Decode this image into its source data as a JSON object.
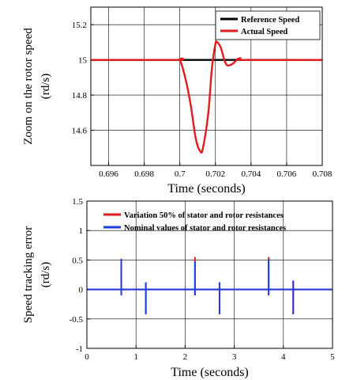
{
  "chart_data": [
    {
      "type": "line",
      "xlabel": "Time (seconds)",
      "ylabel_lines": [
        "Zoom on the  rotor speed",
        "(rd/s)"
      ],
      "xlim": [
        0.695,
        0.708
      ],
      "ylim": [
        14.4,
        15.3
      ],
      "xticks": [
        0.696,
        0.698,
        0.7,
        0.702,
        0.704,
        0.706,
        0.708
      ],
      "xtick_labels": [
        "0.696",
        "0.698",
        "0.7",
        "0.702",
        "0.704",
        "0.706",
        "0.708"
      ],
      "yticks": [
        14.6,
        14.8,
        15,
        15.2
      ],
      "ytick_labels": [
        "14.6",
        "14.8",
        "15",
        "15.2"
      ],
      "grid": true,
      "legend": "top-right",
      "series": [
        {
          "name": "Reference Speed",
          "color": "#000000",
          "x": [
            0.695,
            0.708
          ],
          "y": [
            15.0,
            15.0
          ]
        },
        {
          "name": "Actual Speed",
          "color": "#e41a1c",
          "x": [
            0.695,
            0.6998,
            0.7,
            0.7003,
            0.7006,
            0.7009,
            0.70115,
            0.7013,
            0.7016,
            0.7018,
            0.702,
            0.7021,
            0.7023,
            0.7025,
            0.70265,
            0.7028,
            0.703,
            0.7032,
            0.7034,
            0.7036,
            0.708
          ],
          "y": [
            15.0,
            15.0,
            15.0,
            14.9,
            14.75,
            14.55,
            14.48,
            14.5,
            14.7,
            14.95,
            15.09,
            15.1,
            15.07,
            15.0,
            14.97,
            14.97,
            14.98,
            15.0,
            15.01,
            15.0,
            15.0
          ]
        }
      ]
    },
    {
      "type": "line",
      "xlabel": "Time (seconds)",
      "ylabel_lines": [
        "Speed tracking error",
        "(rd/s)"
      ],
      "xlim": [
        0,
        5
      ],
      "ylim": [
        -1,
        1.5
      ],
      "xticks": [
        0,
        1,
        2,
        3,
        4,
        5
      ],
      "xtick_labels": [
        "0",
        "1",
        "2",
        "3",
        "4",
        "5"
      ],
      "yticks": [
        -1,
        -0.5,
        0,
        0.5,
        1,
        1.5
      ],
      "ytick_labels": [
        "-1",
        "-0.5",
        "0",
        "0.5",
        "1",
        "1.5"
      ],
      "grid": true,
      "legend": "top",
      "series": [
        {
          "name": "Variation 50% of stator and rotor resistances",
          "color": "#e41a1c",
          "spikes": [
            {
              "t": 0.7,
              "max": 0.52,
              "min": -0.1
            },
            {
              "t": 1.2,
              "max": 0.12,
              "min": -0.42
            },
            {
              "t": 2.2,
              "max": 0.55,
              "min": -0.1
            },
            {
              "t": 2.7,
              "max": 0.12,
              "min": -0.42
            },
            {
              "t": 3.7,
              "max": 0.55,
              "min": -0.1
            },
            {
              "t": 4.2,
              "max": 0.15,
              "min": -0.42
            }
          ]
        },
        {
          "name": "Nominal values of stator and rotor resistances",
          "color": "#1f3fe6",
          "spikes": [
            {
              "t": 0.7,
              "max": 0.52,
              "min": -0.1
            },
            {
              "t": 1.2,
              "max": 0.12,
              "min": -0.42
            },
            {
              "t": 2.2,
              "max": 0.48,
              "min": -0.1
            },
            {
              "t": 2.7,
              "max": 0.12,
              "min": -0.42
            },
            {
              "t": 3.7,
              "max": 0.5,
              "min": -0.1
            },
            {
              "t": 4.2,
              "max": 0.15,
              "min": -0.42
            }
          ]
        }
      ]
    }
  ]
}
